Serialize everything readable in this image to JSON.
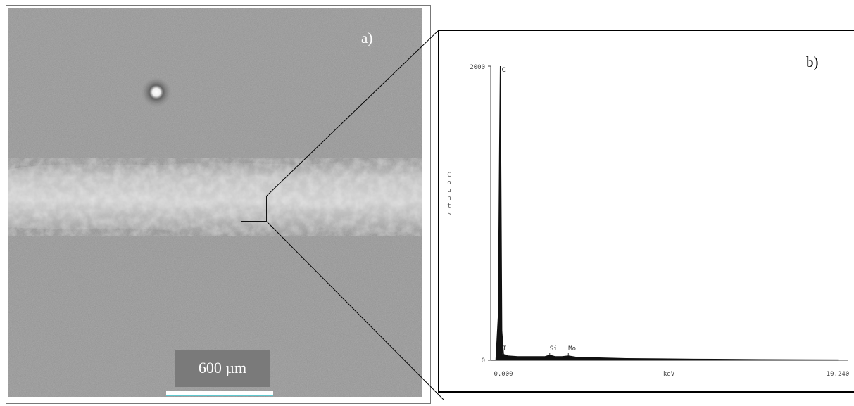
{
  "panel_a": {
    "label": "a)",
    "scale_bar_text": "600 µm"
  },
  "panel_b": {
    "label": "b)",
    "y_axis_label": "Counts"
  },
  "chart_data": {
    "type": "line",
    "title": "",
    "xlabel": "keV",
    "ylabel": "Counts",
    "x_tick_labels": [
      "0.000",
      "10.240"
    ],
    "y_tick_labels": [
      "0",
      "2000"
    ],
    "xlim": [
      0.0,
      10.24
    ],
    "ylim": [
      0,
      2000
    ],
    "peaks": [
      {
        "label": "C",
        "energy": 0.28,
        "counts": 2000
      },
      {
        "label": "I",
        "energy": 0.35,
        "counts": 40
      },
      {
        "label": "Si",
        "energy": 1.74,
        "counts": 35
      },
      {
        "label": "Mo",
        "energy": 2.29,
        "counts": 30
      }
    ],
    "series": [
      {
        "x": [
          0.0,
          0.15,
          0.22,
          0.26,
          0.28,
          0.3,
          0.33,
          0.38,
          0.5,
          0.8,
          1.2,
          1.6,
          1.74,
          1.9,
          2.1,
          2.29,
          2.5,
          3.0,
          4.0,
          5.0,
          6.0,
          8.0,
          10.24
        ],
        "y": [
          0,
          0,
          300,
          1500,
          2000,
          1400,
          200,
          40,
          30,
          25,
          25,
          25,
          35,
          25,
          25,
          30,
          22,
          18,
          12,
          10,
          8,
          5,
          3
        ]
      }
    ]
  }
}
